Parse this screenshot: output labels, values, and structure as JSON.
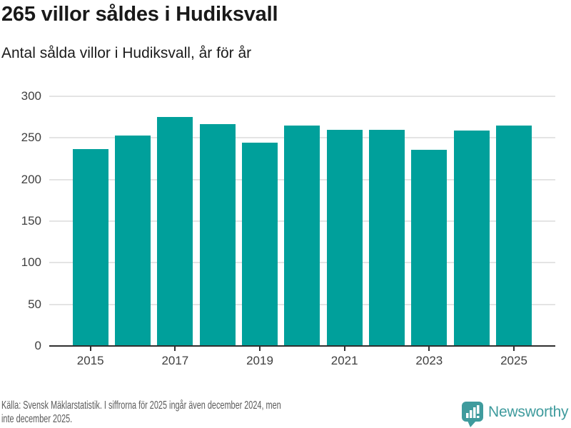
{
  "header": {
    "title": "265 villor såldes i Hudiksvall",
    "subtitle": "Antal sålda villor i Hudiksvall, år för år"
  },
  "chart_data": {
    "type": "bar",
    "title": "265 villor såldes i Hudiksvall",
    "subtitle": "Antal sålda villor i Hudiksvall, år för år",
    "categories": [
      2015,
      2016,
      2017,
      2018,
      2019,
      2020,
      2021,
      2022,
      2023,
      2024,
      2025
    ],
    "values": [
      237,
      253,
      275,
      267,
      244,
      265,
      260,
      260,
      236,
      259,
      265
    ],
    "xlabel": "",
    "ylabel": "",
    "ylim": [
      0,
      300
    ],
    "yticks": [
      0,
      50,
      100,
      150,
      200,
      250,
      300
    ],
    "xticks_shown": [
      2015,
      2017,
      2019,
      2021,
      2023,
      2025
    ],
    "grid": "horizontal",
    "legend": "none",
    "bar_color": "#00a09b"
  },
  "footer": {
    "source_line1": "Källa: Svensk Mäklarstatistik. I siffrorna för 2025 ingår även december 2024, men",
    "source_line2": "inte december 2025.",
    "brand_name": "Newsworthy",
    "brand_color": "#3f9b9d"
  }
}
